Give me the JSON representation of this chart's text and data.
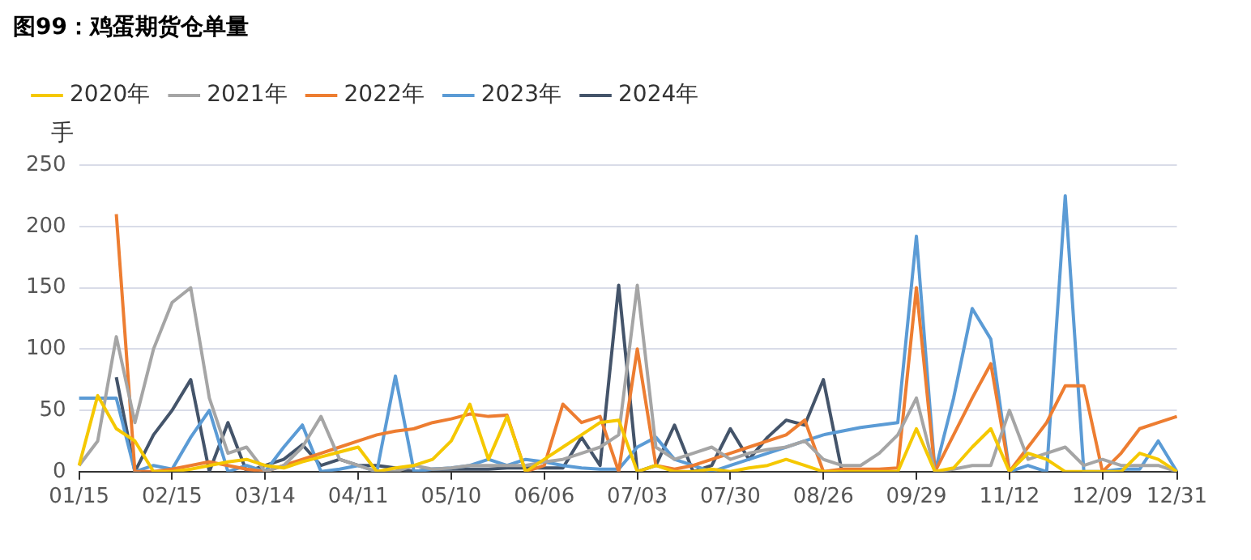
{
  "chart_data": {
    "type": "line",
    "title": "图99：鸡蛋期货仓单量",
    "ylabel": "手",
    "categories": [
      "01/15",
      null,
      null,
      null,
      null,
      "02/15",
      null,
      null,
      null,
      null,
      "03/14",
      null,
      null,
      null,
      null,
      "04/11",
      null,
      null,
      null,
      null,
      "05/10",
      null,
      null,
      null,
      null,
      "06/06",
      null,
      null,
      null,
      null,
      "07/03",
      null,
      null,
      null,
      null,
      "07/30",
      null,
      null,
      null,
      null,
      "08/26",
      null,
      null,
      null,
      null,
      "09/29",
      null,
      null,
      null,
      null,
      "11/12",
      null,
      null,
      null,
      null,
      "12/09",
      null,
      null,
      null,
      "12/31"
    ],
    "series": [
      {
        "name": "2020年",
        "color": "#f5c800",
        "values": [
          5,
          62,
          35,
          25,
          0,
          0,
          2,
          5,
          8,
          10,
          5,
          3,
          8,
          12,
          16,
          20,
          0,
          3,
          5,
          10,
          25,
          55,
          10,
          45,
          0,
          10,
          20,
          30,
          40,
          42,
          0,
          5,
          0,
          0,
          2,
          0,
          3,
          5,
          10,
          5,
          0,
          0,
          0,
          0,
          0,
          35,
          0,
          3,
          20,
          35,
          0,
          15,
          10,
          0,
          0,
          0,
          0,
          15,
          10,
          0
        ]
      },
      {
        "name": "2021年",
        "color": "#a5a5a5",
        "values": [
          5,
          25,
          110,
          40,
          100,
          138,
          150,
          60,
          15,
          20,
          0,
          5,
          20,
          45,
          10,
          5,
          0,
          0,
          5,
          2,
          3,
          5,
          5,
          5,
          5,
          8,
          10,
          15,
          20,
          30,
          152,
          20,
          10,
          15,
          20,
          10,
          15,
          18,
          20,
          25,
          10,
          5,
          5,
          15,
          30,
          60,
          0,
          2,
          5,
          5,
          50,
          10,
          15,
          20,
          5,
          10,
          5,
          5,
          5,
          0
        ]
      },
      {
        "name": "2022年",
        "color": "#ed7d31",
        "values": [
          null,
          null,
          210,
          0,
          0,
          2,
          5,
          8,
          5,
          2,
          0,
          5,
          10,
          15,
          20,
          25,
          30,
          33,
          35,
          40,
          43,
          47,
          45,
          46,
          0,
          5,
          55,
          40,
          45,
          0,
          100,
          5,
          2,
          5,
          10,
          15,
          20,
          25,
          30,
          42,
          0,
          2,
          2,
          2,
          3,
          150,
          0,
          30,
          60,
          88,
          0,
          20,
          40,
          70,
          70,
          0,
          15,
          35,
          40,
          45
        ]
      },
      {
        "name": "2023年",
        "color": "#5b9bd5",
        "values": [
          60,
          60,
          60,
          0,
          5,
          2,
          28,
          50,
          0,
          5,
          0,
          20,
          38,
          0,
          2,
          5,
          0,
          78,
          0,
          2,
          3,
          5,
          10,
          5,
          10,
          8,
          5,
          3,
          2,
          2,
          20,
          28,
          10,
          5,
          0,
          5,
          10,
          15,
          20,
          25,
          30,
          33,
          36,
          38,
          40,
          192,
          0,
          60,
          133,
          108,
          0,
          5,
          0,
          225,
          0,
          0,
          2,
          2,
          25,
          0
        ]
      },
      {
        "name": "2024年",
        "color": "#44546a",
        "values": [
          null,
          null,
          77,
          0,
          30,
          50,
          75,
          0,
          40,
          0,
          5,
          10,
          22,
          5,
          10,
          5,
          5,
          3,
          0,
          2,
          2,
          2,
          2,
          3,
          3,
          3,
          3,
          28,
          5,
          152,
          0,
          5,
          38,
          0,
          5,
          35,
          10,
          28,
          42,
          38,
          75,
          0,
          null,
          null,
          null,
          null,
          null,
          null,
          null,
          null,
          null,
          null,
          null,
          null,
          null,
          null,
          null,
          null,
          null,
          null
        ]
      }
    ],
    "ylim": [
      0,
      250
    ],
    "yticks": [
      0,
      50,
      100,
      150,
      200,
      250
    ],
    "grid": "y",
    "legend": "top left",
    "marker": "none",
    "line_style": "solid"
  }
}
